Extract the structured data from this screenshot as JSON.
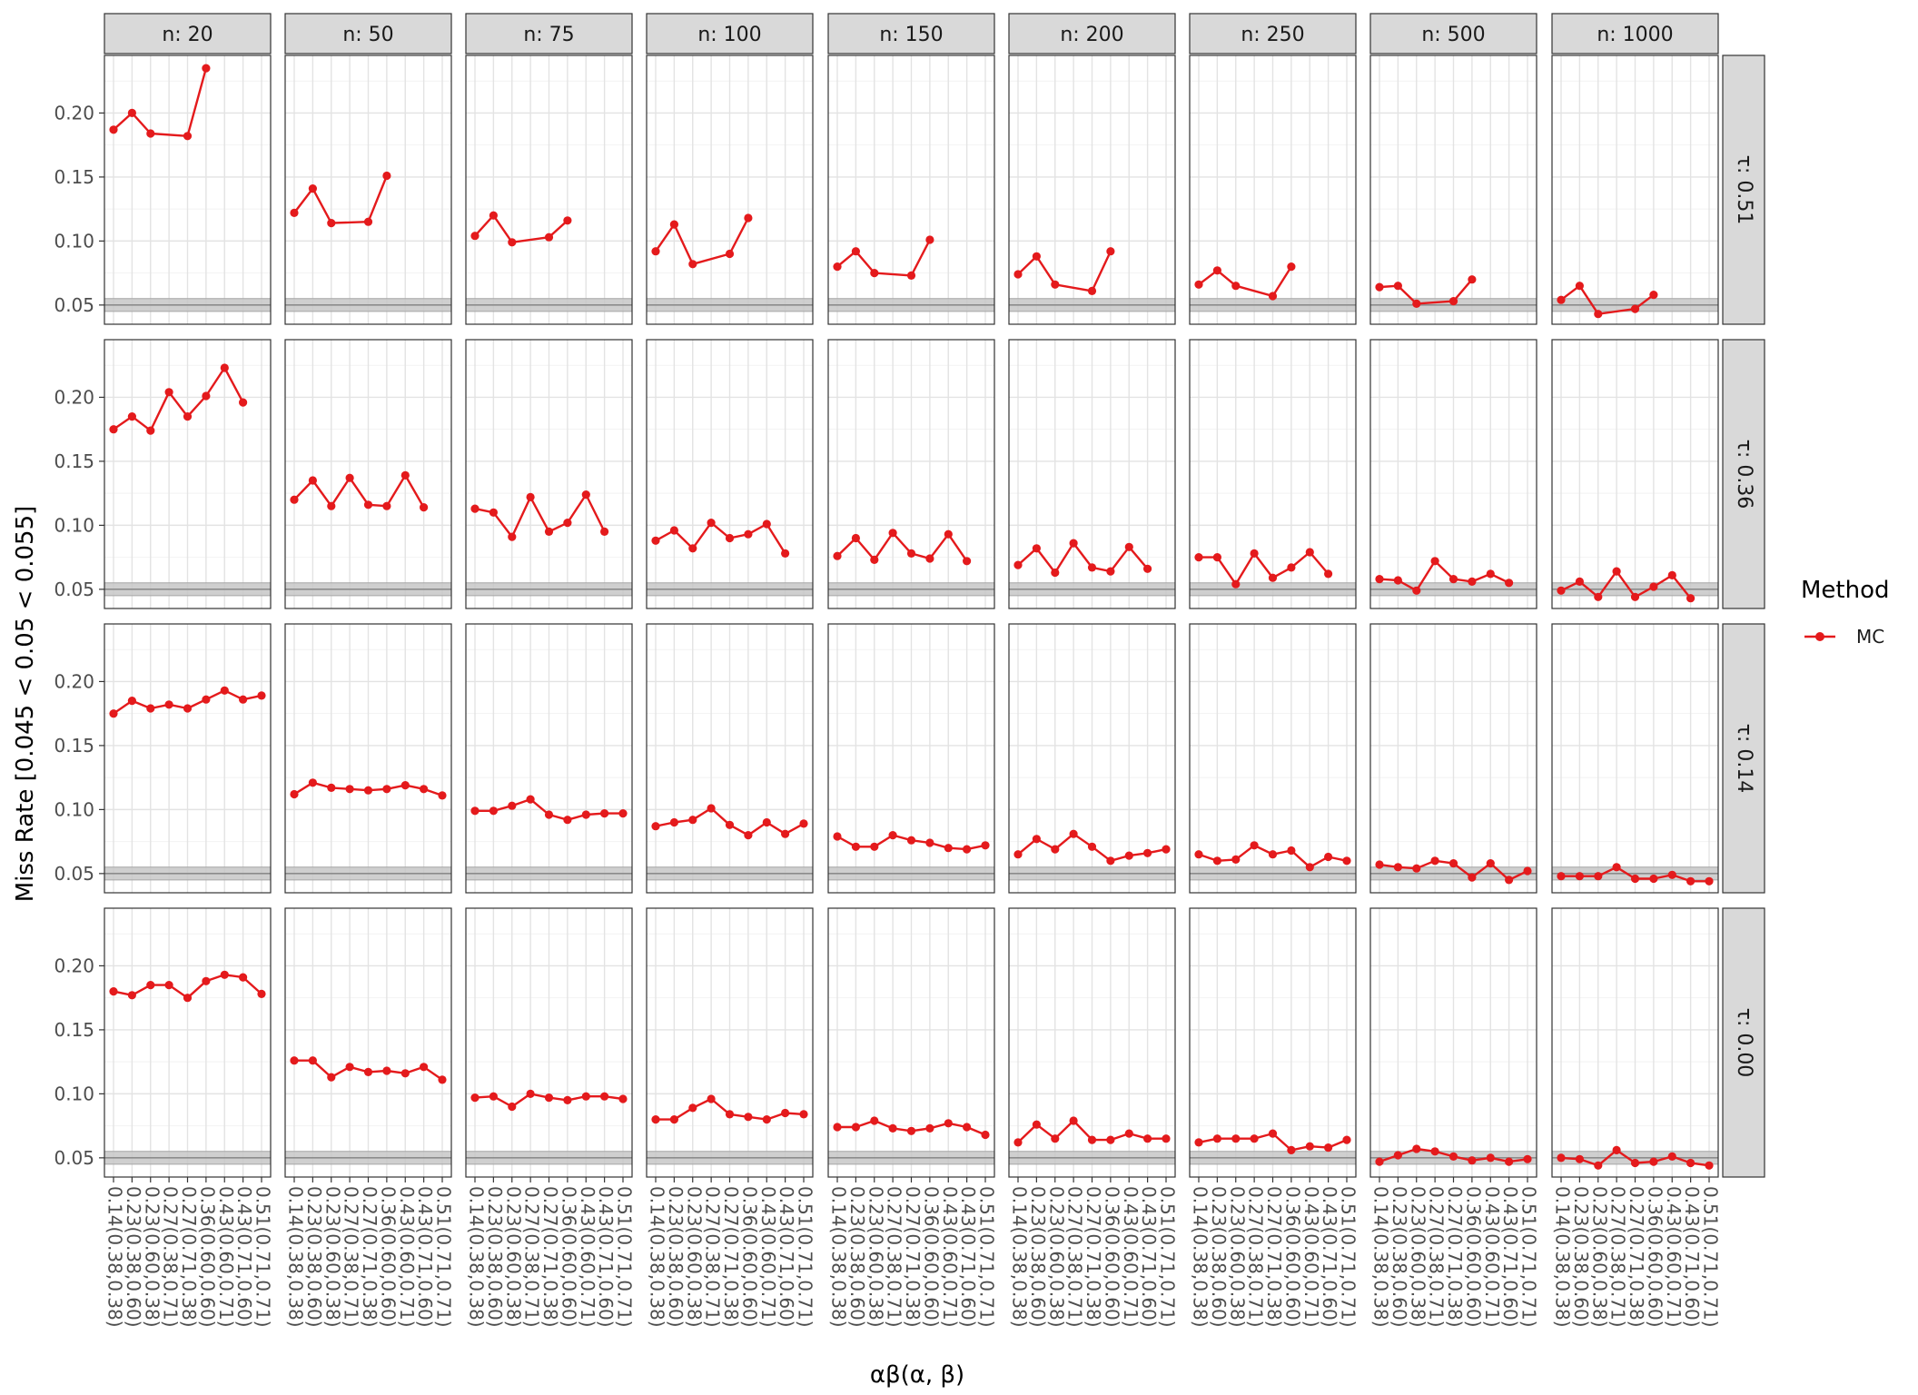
{
  "chart_data": {
    "type": "line",
    "xlabel": "αβ(α, β)",
    "ylabel": "Miss Rate [0.045 < 0.05 < 0.055]",
    "ylim": [
      0.035,
      0.245
    ],
    "yticks": [
      0.05,
      0.1,
      0.15,
      0.2
    ],
    "ytick_labels": [
      "0.05",
      "0.10",
      "0.15",
      "0.20"
    ],
    "band": {
      "low": 0.045,
      "mid": 0.05,
      "high": 0.055
    },
    "x_categories": [
      "0.14(0.38,0.38)",
      "0.23(0.38,0.60)",
      "0.23(0.60,0.38)",
      "0.27(0.38,0.71)",
      "0.27(0.71,0.38)",
      "0.36(0.60,0.60)",
      "0.43(0.60,0.71)",
      "0.43(0.71,0.60)",
      "0.51(0.71,0.71)"
    ],
    "col_strips": [
      "n: 20",
      "n: 50",
      "n: 75",
      "n: 100",
      "n: 150",
      "n: 200",
      "n: 250",
      "n: 500",
      "n: 1000"
    ],
    "row_strips": [
      "τ: 0.51",
      "τ: 0.36",
      "τ: 0.14",
      "τ: 0.00"
    ],
    "legend": {
      "title": "Method",
      "items": [
        {
          "label": "MC",
          "color": "#e41a1c"
        }
      ]
    },
    "grid": true,
    "colors": {
      "series": "#e41a1c",
      "band": "#c7c7c7",
      "band_line": "#8c8c8c",
      "strip": "#d9d9d9"
    },
    "panels": [
      [
        [
          0.187,
          0.2,
          0.184,
          null,
          0.182,
          0.235,
          null,
          null,
          null
        ],
        [
          0.122,
          0.141,
          0.114,
          null,
          0.115,
          0.151,
          null,
          null,
          null
        ],
        [
          0.104,
          0.12,
          0.099,
          null,
          0.103,
          0.116,
          null,
          null,
          null
        ],
        [
          0.092,
          0.113,
          0.082,
          null,
          0.09,
          0.118,
          null,
          null,
          null
        ],
        [
          0.08,
          0.092,
          0.075,
          null,
          0.073,
          0.101,
          null,
          null,
          null
        ],
        [
          0.074,
          0.088,
          0.066,
          null,
          0.061,
          0.092,
          null,
          null,
          null
        ],
        [
          0.066,
          0.077,
          0.065,
          null,
          0.057,
          0.08,
          null,
          null,
          null
        ],
        [
          0.064,
          0.065,
          0.051,
          null,
          0.053,
          0.07,
          null,
          null,
          null
        ],
        [
          0.054,
          0.065,
          0.043,
          null,
          0.047,
          0.058,
          null,
          null,
          null
        ]
      ],
      [
        [
          0.175,
          0.185,
          0.174,
          0.204,
          0.185,
          0.201,
          0.223,
          0.196,
          null
        ],
        [
          0.12,
          0.135,
          0.115,
          0.137,
          0.116,
          0.115,
          0.139,
          0.114,
          null
        ],
        [
          0.113,
          0.11,
          0.091,
          0.122,
          0.095,
          0.102,
          0.124,
          0.095,
          null
        ],
        [
          0.088,
          0.096,
          0.082,
          0.102,
          0.09,
          0.093,
          0.101,
          0.078,
          null
        ],
        [
          0.076,
          0.09,
          0.073,
          0.094,
          0.078,
          0.074,
          0.093,
          0.072,
          null
        ],
        [
          0.069,
          0.082,
          0.063,
          0.086,
          0.067,
          0.064,
          0.083,
          0.066,
          null
        ],
        [
          0.075,
          0.075,
          0.054,
          0.078,
          0.059,
          0.067,
          0.079,
          0.062,
          null
        ],
        [
          0.058,
          0.057,
          0.049,
          0.072,
          0.058,
          0.056,
          0.062,
          0.055,
          null
        ],
        [
          0.049,
          0.056,
          0.044,
          0.064,
          0.044,
          0.052,
          0.061,
          0.043,
          null
        ]
      ],
      [
        [
          0.175,
          0.185,
          0.179,
          0.182,
          0.179,
          0.186,
          0.193,
          0.186,
          0.189
        ],
        [
          0.112,
          0.121,
          0.117,
          0.116,
          0.115,
          0.116,
          0.119,
          0.116,
          0.111
        ],
        [
          0.099,
          0.099,
          0.103,
          0.108,
          0.096,
          0.092,
          0.096,
          0.097,
          0.097
        ],
        [
          0.087,
          0.09,
          0.092,
          0.101,
          0.088,
          0.08,
          0.09,
          0.081,
          0.089
        ],
        [
          0.079,
          0.071,
          0.071,
          0.08,
          0.076,
          0.074,
          0.07,
          0.069,
          0.072
        ],
        [
          0.065,
          0.077,
          0.069,
          0.081,
          0.071,
          0.06,
          0.064,
          0.066,
          0.069
        ],
        [
          0.065,
          0.06,
          0.061,
          0.072,
          0.065,
          0.068,
          0.055,
          0.063,
          0.06
        ],
        [
          0.057,
          0.055,
          0.054,
          0.06,
          0.058,
          0.047,
          0.058,
          0.045,
          0.052
        ],
        [
          0.048,
          0.048,
          0.048,
          0.055,
          0.046,
          0.046,
          0.049,
          0.044,
          0.044
        ]
      ],
      [
        [
          0.18,
          0.177,
          0.185,
          0.185,
          0.175,
          0.188,
          0.193,
          0.191,
          0.178
        ],
        [
          0.126,
          0.126,
          0.113,
          0.121,
          0.117,
          0.118,
          0.116,
          0.121,
          0.111
        ],
        [
          0.097,
          0.098,
          0.09,
          0.1,
          0.097,
          0.095,
          0.098,
          0.098,
          0.096
        ],
        [
          0.08,
          0.08,
          0.089,
          0.096,
          0.084,
          0.082,
          0.08,
          0.085,
          0.084
        ],
        [
          0.074,
          0.074,
          0.079,
          0.073,
          0.071,
          0.073,
          0.077,
          0.074,
          0.068
        ],
        [
          0.062,
          0.076,
          0.065,
          0.079,
          0.064,
          0.064,
          0.069,
          0.065,
          0.065
        ],
        [
          0.062,
          0.065,
          0.065,
          0.065,
          0.069,
          0.056,
          0.059,
          0.058,
          0.064
        ],
        [
          0.047,
          0.052,
          0.057,
          0.055,
          0.051,
          0.048,
          0.05,
          0.047,
          0.049
        ],
        [
          0.05,
          0.049,
          0.044,
          0.056,
          0.046,
          0.047,
          0.051,
          0.046,
          0.044
        ]
      ]
    ]
  }
}
